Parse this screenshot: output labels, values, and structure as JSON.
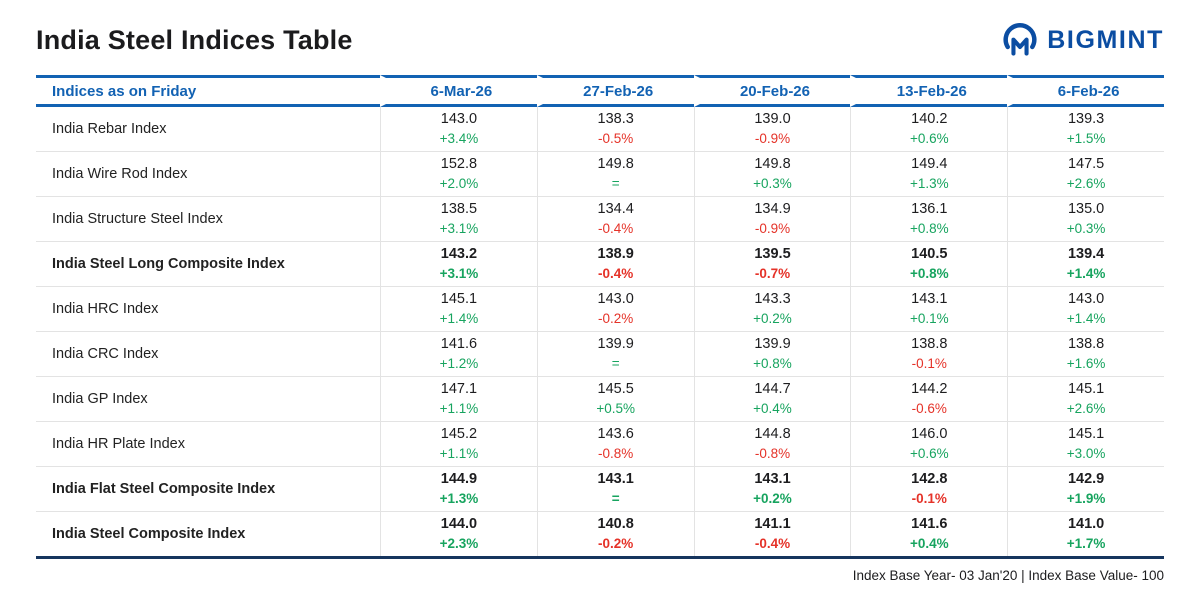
{
  "header": {
    "title": "India Steel Indices Table",
    "brand": "BIGMINT"
  },
  "footer": {
    "note": "Index Base Year- 03 Jan'20 | Index Base Value- 100"
  },
  "colors": {
    "accent_blue": "#1262b3",
    "brand_blue": "#0b4da2",
    "positive_green": "#17a45f",
    "negative_red": "#e53228",
    "navy_rule": "#16355e",
    "grid_gray": "#e3e3e3"
  },
  "chart_data": {
    "type": "table",
    "title": "India Steel Indices Table",
    "columns": [
      "Indices as on Friday",
      "6-Mar-26",
      "27-Feb-26",
      "20-Feb-26",
      "13-Feb-26",
      "6-Feb-26"
    ],
    "rows": [
      {
        "label": "India Rebar Index",
        "bold": false,
        "cells": [
          {
            "value": "143.0",
            "change": "+3.4%",
            "dir": "up"
          },
          {
            "value": "138.3",
            "change": "-0.5%",
            "dir": "down"
          },
          {
            "value": "139.0",
            "change": "-0.9%",
            "dir": "down"
          },
          {
            "value": "140.2",
            "change": "+0.6%",
            "dir": "up"
          },
          {
            "value": "139.3",
            "change": "+1.5%",
            "dir": "up"
          }
        ]
      },
      {
        "label": "India Wire Rod Index",
        "bold": false,
        "cells": [
          {
            "value": "152.8",
            "change": "+2.0%",
            "dir": "up"
          },
          {
            "value": "149.8",
            "change": "=",
            "dir": "flat"
          },
          {
            "value": "149.8",
            "change": "+0.3%",
            "dir": "up"
          },
          {
            "value": "149.4",
            "change": "+1.3%",
            "dir": "up"
          },
          {
            "value": "147.5",
            "change": "+2.6%",
            "dir": "up"
          }
        ]
      },
      {
        "label": "India Structure Steel Index",
        "bold": false,
        "cells": [
          {
            "value": "138.5",
            "change": "+3.1%",
            "dir": "up"
          },
          {
            "value": "134.4",
            "change": "-0.4%",
            "dir": "down"
          },
          {
            "value": "134.9",
            "change": "-0.9%",
            "dir": "down"
          },
          {
            "value": "136.1",
            "change": "+0.8%",
            "dir": "up"
          },
          {
            "value": "135.0",
            "change": "+0.3%",
            "dir": "up"
          }
        ]
      },
      {
        "label": "India Steel Long Composite Index",
        "bold": true,
        "cells": [
          {
            "value": "143.2",
            "change": "+3.1%",
            "dir": "up"
          },
          {
            "value": "138.9",
            "change": "-0.4%",
            "dir": "down"
          },
          {
            "value": "139.5",
            "change": "-0.7%",
            "dir": "down"
          },
          {
            "value": "140.5",
            "change": "+0.8%",
            "dir": "up"
          },
          {
            "value": "139.4",
            "change": "+1.4%",
            "dir": "up"
          }
        ]
      },
      {
        "label": "India HRC Index",
        "bold": false,
        "cells": [
          {
            "value": "145.1",
            "change": "+1.4%",
            "dir": "up"
          },
          {
            "value": "143.0",
            "change": "-0.2%",
            "dir": "down"
          },
          {
            "value": "143.3",
            "change": "+0.2%",
            "dir": "up"
          },
          {
            "value": "143.1",
            "change": "+0.1%",
            "dir": "up"
          },
          {
            "value": "143.0",
            "change": "+1.4%",
            "dir": "up"
          }
        ]
      },
      {
        "label": "India CRC Index",
        "bold": false,
        "cells": [
          {
            "value": "141.6",
            "change": "+1.2%",
            "dir": "up"
          },
          {
            "value": "139.9",
            "change": "=",
            "dir": "flat"
          },
          {
            "value": "139.9",
            "change": "+0.8%",
            "dir": "up"
          },
          {
            "value": "138.8",
            "change": "-0.1%",
            "dir": "down"
          },
          {
            "value": "138.8",
            "change": "+1.6%",
            "dir": "up"
          }
        ]
      },
      {
        "label": "India GP Index",
        "bold": false,
        "cells": [
          {
            "value": "147.1",
            "change": "+1.1%",
            "dir": "up"
          },
          {
            "value": "145.5",
            "change": "+0.5%",
            "dir": "up"
          },
          {
            "value": "144.7",
            "change": "+0.4%",
            "dir": "up"
          },
          {
            "value": "144.2",
            "change": "-0.6%",
            "dir": "down"
          },
          {
            "value": "145.1",
            "change": "+2.6%",
            "dir": "up"
          }
        ]
      },
      {
        "label": "India HR Plate Index",
        "bold": false,
        "cells": [
          {
            "value": "145.2",
            "change": "+1.1%",
            "dir": "up"
          },
          {
            "value": "143.6",
            "change": "-0.8%",
            "dir": "down"
          },
          {
            "value": "144.8",
            "change": "-0.8%",
            "dir": "down"
          },
          {
            "value": "146.0",
            "change": "+0.6%",
            "dir": "up"
          },
          {
            "value": "145.1",
            "change": "+3.0%",
            "dir": "up"
          }
        ]
      },
      {
        "label": "India Flat Steel Composite Index",
        "bold": true,
        "cells": [
          {
            "value": "144.9",
            "change": "+1.3%",
            "dir": "up"
          },
          {
            "value": "143.1",
            "change": "=",
            "dir": "flat"
          },
          {
            "value": "143.1",
            "change": "+0.2%",
            "dir": "up"
          },
          {
            "value": "142.8",
            "change": "-0.1%",
            "dir": "down"
          },
          {
            "value": "142.9",
            "change": "+1.9%",
            "dir": "up"
          }
        ]
      },
      {
        "label": "India Steel Composite Index",
        "bold": true,
        "cells": [
          {
            "value": "144.0",
            "change": "+2.3%",
            "dir": "up"
          },
          {
            "value": "140.8",
            "change": "-0.2%",
            "dir": "down"
          },
          {
            "value": "141.1",
            "change": "-0.4%",
            "dir": "down"
          },
          {
            "value": "141.6",
            "change": "+0.4%",
            "dir": "up"
          },
          {
            "value": "141.0",
            "change": "+1.7%",
            "dir": "up"
          }
        ]
      }
    ]
  }
}
